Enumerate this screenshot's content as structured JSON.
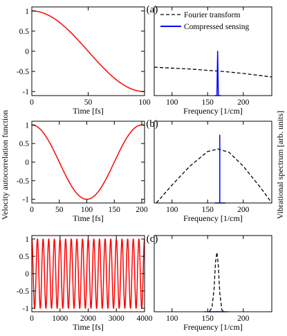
{
  "figure": {
    "ylabel_left": "Velocity autocorrelation function",
    "ylabel_right": "Vibrational spectrum [arb. units]",
    "legend": [
      {
        "label": "Fourier transform",
        "color": "#000000",
        "style": "dashed"
      },
      {
        "label": "Compressed sensing",
        "color": "#0000ff",
        "style": "solid"
      }
    ]
  },
  "chart_data": [
    {
      "panel": "(a)",
      "type": "line",
      "xlabel": "Time [fs]",
      "xlim": [
        0,
        100
      ],
      "ylim": [
        -1.1,
        1.1
      ],
      "xticks": [
        "0",
        "50",
        "100"
      ],
      "xtickvals": [
        0,
        50,
        100
      ],
      "yticks": [
        "1",
        "0.5",
        "0",
        "-0.5",
        "-1"
      ],
      "ytickvals": [
        1,
        0.5,
        0,
        -0.5,
        -1
      ],
      "series": [
        {
          "color": "#ff0000",
          "function": "cos",
          "period_fs": 200
        }
      ]
    },
    {
      "panel": "(a)",
      "type": "line",
      "xlabel": "Frequency [1/cm]",
      "xlim": [
        75,
        240
      ],
      "ylim": [
        0,
        1
      ],
      "xticks": [
        "100",
        "150",
        "200"
      ],
      "xtickvals": [
        100,
        150,
        200
      ],
      "series": [
        {
          "name": "Fourier transform",
          "color": "#000000",
          "dashed": true,
          "x": [
            75,
            100,
            125,
            150,
            175,
            200,
            225,
            240
          ],
          "y": [
            0.32,
            0.31,
            0.3,
            0.285,
            0.27,
            0.25,
            0.225,
            0.21
          ]
        },
        {
          "name": "Compressed sensing",
          "color": "#0000ff",
          "dashed": false,
          "x": [
            160,
            163,
            164,
            165,
            168
          ],
          "y": [
            0,
            0,
            0.5,
            0,
            0
          ]
        }
      ]
    },
    {
      "panel": "(b)",
      "type": "line",
      "xlabel": "Time [fs]",
      "xlim": [
        0,
        205
      ],
      "ylim": [
        -1.1,
        1.1
      ],
      "xticks": [
        "0",
        "50",
        "100",
        "150",
        "200"
      ],
      "xtickvals": [
        0,
        50,
        100,
        150,
        200
      ],
      "yticks": [
        "1",
        "0.5",
        "0",
        "-0.5",
        "-1"
      ],
      "ytickvals": [
        1,
        0.5,
        0,
        -0.5,
        -1
      ],
      "series": [
        {
          "color": "#ff0000",
          "function": "cos",
          "period_fs": 200
        }
      ]
    },
    {
      "panel": "(b)",
      "type": "line",
      "xlabel": "Frequency [1/cm]",
      "xlim": [
        75,
        240
      ],
      "ylim": [
        0,
        1
      ],
      "xticks": [
        "100",
        "150",
        "200"
      ],
      "xtickvals": [
        100,
        150,
        200
      ],
      "series": [
        {
          "name": "Fourier transform",
          "color": "#000000",
          "dashed": true,
          "x": [
            78,
            100,
            125,
            150,
            165,
            180,
            200,
            225,
            240
          ],
          "y": [
            0.0,
            0.22,
            0.45,
            0.63,
            0.66,
            0.62,
            0.45,
            0.18,
            0.0
          ]
        },
        {
          "name": "Compressed sensing",
          "color": "#0000ff",
          "dashed": false,
          "x": [
            160,
            167,
            167,
            167,
            175
          ],
          "y": [
            0,
            0,
            0.83,
            0,
            0
          ]
        }
      ]
    },
    {
      "panel": "(c)",
      "type": "line",
      "xlabel": "Time [fs]",
      "xlim": [
        0,
        4000
      ],
      "ylim": [
        -1.1,
        1.1
      ],
      "xticks": [
        "0",
        "1000",
        "2000",
        "3000",
        "4000"
      ],
      "xtickvals": [
        0,
        1000,
        2000,
        3000,
        4000
      ],
      "yticks": [
        "1",
        "0.5",
        "0",
        "-0.5",
        "-1"
      ],
      "ytickvals": [
        1,
        0.5,
        0,
        -0.5,
        -1
      ],
      "series": [
        {
          "color": "#ff0000",
          "function": "cos",
          "period_fs": 200
        }
      ]
    },
    {
      "panel": "(c)",
      "type": "line",
      "xlabel": "Frequency [1/cm]",
      "xlim": [
        75,
        240
      ],
      "ylim": [
        0,
        1
      ],
      "xticks": [
        "100",
        "150",
        "200"
      ],
      "xtickvals": [
        100,
        150,
        200
      ],
      "series": [
        {
          "name": "Fourier transform",
          "color": "#000000",
          "dashed": true,
          "x": [
            145,
            152,
            156,
            159,
            161,
            163,
            165,
            167,
            170,
            175,
            180
          ],
          "y": [
            0,
            0,
            0.05,
            0.3,
            0.65,
            0.78,
            0.6,
            0.25,
            0.02,
            0,
            0
          ]
        },
        {
          "name": "Compressed sensing",
          "color": "#0000ff",
          "dashed": false,
          "x": [
            150,
            163,
            163,
            163,
            175
          ],
          "y": [
            0,
            0,
            0.0,
            0,
            0
          ]
        }
      ]
    }
  ]
}
